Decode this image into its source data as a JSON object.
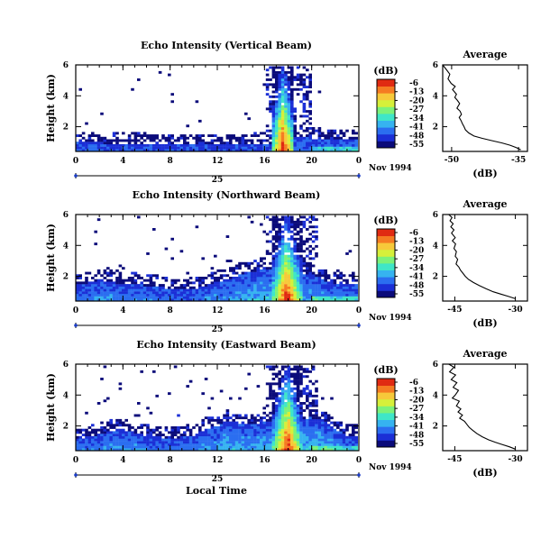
{
  "figure": {
    "xlabel": "Local Time",
    "colorbar_unit": "(dB)",
    "colorbar_ticks": [
      "-6",
      "-13",
      "-20",
      "-27",
      "-34",
      "-41",
      "-48",
      "-55"
    ],
    "day_label": "25",
    "date_label": "Nov 1994",
    "avg_title": "Average",
    "avg_xlabel": "(dB)",
    "colors": {
      "colormap": [
        "#0b0b7a",
        "#1b2fd6",
        "#2b6ef0",
        "#36b3f0",
        "#3fe6c8",
        "#7cf27a",
        "#d6f03a",
        "#f7c93a",
        "#f57b22",
        "#e02a12"
      ]
    }
  },
  "chart_data": [
    {
      "type": "heatmap",
      "title": "Echo Intensity (Vertical Beam)",
      "ylabel": "Height (km)",
      "xlabel": "",
      "x_ticks": [
        "0",
        "4",
        "8",
        "12",
        "16",
        "20",
        "0"
      ],
      "y_ticks": [
        "6",
        "4",
        "2"
      ],
      "xlim": [
        0,
        24
      ],
      "ylim": [
        0.4,
        6
      ],
      "zlim": [
        -55,
        -6
      ],
      "base_height_km": [
        1.0,
        1.0,
        1.0,
        0.9,
        0.9,
        0.9,
        0.9,
        0.8,
        0.8,
        0.8,
        0.8,
        0.8,
        0.8,
        0.8,
        0.8,
        0.9,
        0.9,
        1.0,
        1.2,
        1.4,
        1.3,
        1.2,
        1.2,
        1.2,
        1.2
      ],
      "plume_hours": [
        16.7,
        18.6
      ],
      "plume_top_km": 6.0,
      "max_intensity_db": -6
    },
    {
      "type": "heatmap",
      "title": "Echo Intensity (Northward Beam)",
      "ylabel": "Height (km)",
      "xlabel": "",
      "x_ticks": [
        "0",
        "4",
        "8",
        "12",
        "16",
        "20",
        "0"
      ],
      "y_ticks": [
        "6",
        "4",
        "2"
      ],
      "xlim": [
        0,
        24
      ],
      "ylim": [
        0.4,
        6
      ],
      "zlim": [
        -55,
        -6
      ],
      "base_height_km": [
        1.4,
        1.6,
        1.8,
        1.7,
        1.5,
        1.6,
        1.4,
        1.4,
        1.2,
        1.2,
        1.2,
        1.4,
        1.7,
        1.8,
        2.2,
        2.3,
        2.6,
        2.3,
        2.0,
        2.1,
        2.3,
        1.8,
        1.6,
        1.5,
        1.6
      ],
      "plume_hours": [
        16.7,
        19.2
      ],
      "plume_top_km": 6.0,
      "max_intensity_db": -6
    },
    {
      "type": "heatmap",
      "title": "Echo Intensity (Eastward Beam)",
      "ylabel": "Height (km)",
      "xlabel": "Local Time",
      "x_ticks": [
        "0",
        "4",
        "8",
        "12",
        "16",
        "20",
        "0"
      ],
      "y_ticks": [
        "6",
        "4",
        "2"
      ],
      "xlim": [
        0,
        24
      ],
      "ylim": [
        0.4,
        6
      ],
      "zlim": [
        -55,
        -6
      ],
      "base_height_km": [
        1.2,
        1.3,
        1.5,
        1.7,
        1.8,
        1.6,
        1.4,
        1.3,
        1.2,
        1.3,
        1.4,
        1.8,
        2.0,
        2.4,
        2.2,
        2.1,
        2.3,
        2.2,
        2.2,
        2.4,
        2.6,
        2.4,
        1.9,
        1.4,
        1.4
      ],
      "plume_hours": [
        16.8,
        19.2
      ],
      "plume_top_km": 6.0,
      "max_intensity_db": -6
    },
    {
      "type": "line",
      "title": "Average",
      "xlabel": "(dB)",
      "x_ticks": [
        "-50",
        "-35"
      ],
      "xlim": [
        -52,
        -33
      ],
      "y_ticks": [
        "6",
        "4",
        "2"
      ],
      "ylim": [
        0.4,
        6
      ],
      "x": [
        -52,
        -51.2,
        -50.4,
        -50.8,
        -50.1,
        -49.2,
        -49.8,
        -48.9,
        -49.3,
        -48.7,
        -48.2,
        -48.8,
        -48.1,
        -47.8,
        -48.3,
        -47.9,
        -47.6,
        -47.2,
        -46.9,
        -46.2,
        -45.0,
        -43.2,
        -41.0,
        -38.7,
        -36.9,
        -35.5,
        -34.5
      ],
      "y": [
        6.0,
        5.7,
        5.4,
        5.1,
        4.8,
        4.6,
        4.4,
        4.1,
        3.9,
        3.7,
        3.5,
        3.2,
        3.0,
        2.8,
        2.6,
        2.4,
        2.2,
        2.0,
        1.8,
        1.6,
        1.4,
        1.25,
        1.1,
        0.95,
        0.8,
        0.65,
        0.5
      ]
    },
    {
      "type": "line",
      "title": "Average",
      "xlabel": "(dB)",
      "x_ticks": [
        "-45",
        "-30"
      ],
      "xlim": [
        -48,
        -27
      ],
      "y_ticks": [
        "6",
        "4",
        "2"
      ],
      "ylim": [
        0.4,
        6
      ],
      "x": [
        -46.5,
        -45.7,
        -46.2,
        -45.4,
        -46.0,
        -45.2,
        -45.8,
        -44.9,
        -45.6,
        -44.8,
        -45.2,
        -44.6,
        -44.9,
        -44.3,
        -44.7,
        -44.0,
        -43.6,
        -43.0,
        -42.4,
        -41.6,
        -40.4,
        -38.9,
        -37.3,
        -35.5,
        -33.6,
        -31.7,
        -30.0
      ],
      "y": [
        6.0,
        5.8,
        5.6,
        5.4,
        5.2,
        5.0,
        4.8,
        4.5,
        4.3,
        4.1,
        3.8,
        3.6,
        3.3,
        3.1,
        2.8,
        2.6,
        2.4,
        2.2,
        2.0,
        1.8,
        1.6,
        1.4,
        1.2,
        1.0,
        0.85,
        0.7,
        0.55
      ]
    },
    {
      "type": "line",
      "title": "Average",
      "xlabel": "(dB)",
      "x_ticks": [
        "-45",
        "-30"
      ],
      "xlim": [
        -48,
        -27
      ],
      "y_ticks": [
        "6",
        "4",
        "2"
      ],
      "ylim": [
        0.4,
        6
      ],
      "x": [
        -46.5,
        -45.2,
        -46.3,
        -44.8,
        -45.9,
        -44.5,
        -45.4,
        -44.1,
        -44.9,
        -45.6,
        -43.9,
        -44.6,
        -43.5,
        -44.2,
        -43.1,
        -43.8,
        -42.6,
        -42.0,
        -41.4,
        -40.5,
        -39.5,
        -38.2,
        -36.6,
        -35.0,
        -33.3,
        -31.5,
        -30.0
      ],
      "y": [
        6.0,
        5.8,
        5.5,
        5.3,
        5.0,
        4.8,
        4.5,
        4.3,
        4.0,
        3.8,
        3.6,
        3.3,
        3.1,
        2.9,
        2.7,
        2.5,
        2.3,
        2.1,
        1.9,
        1.7,
        1.5,
        1.3,
        1.1,
        0.95,
        0.8,
        0.65,
        0.5
      ]
    }
  ]
}
